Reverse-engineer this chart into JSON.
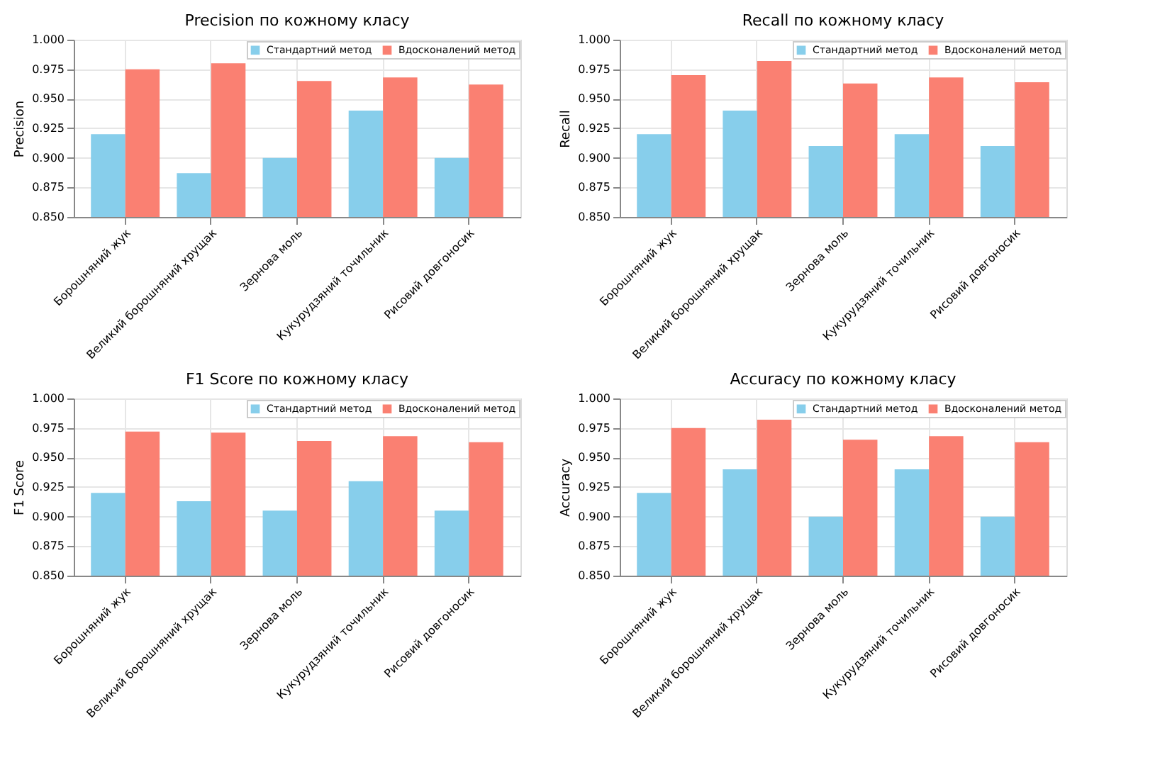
{
  "chart_data": [
    {
      "type": "bar",
      "title": "Precision по кожному класу",
      "ylabel": "Precision",
      "categories": [
        "Борошняний жук",
        "Великий борошняний хрущак",
        "Зернова моль",
        "Кукурудзяний точильник",
        "Рисовий довгоносик"
      ],
      "series": [
        {
          "name": "Стандартний метод",
          "color": "#87ceeb",
          "values": [
            0.92,
            0.887,
            0.9,
            0.94,
            0.9
          ]
        },
        {
          "name": "Вдосконалений метод",
          "color": "#fa8072",
          "values": [
            0.975,
            0.98,
            0.965,
            0.968,
            0.962
          ]
        }
      ],
      "ylim": [
        0.85,
        1.0
      ],
      "yticks": [
        {
          "value": 0.85,
          "label": "0.850"
        },
        {
          "value": 0.875,
          "label": "0.875"
        },
        {
          "value": 0.9,
          "label": "0.900"
        },
        {
          "value": 0.925,
          "label": "0.925"
        },
        {
          "value": 0.95,
          "label": "0.950"
        },
        {
          "value": 0.975,
          "label": "0.975"
        },
        {
          "value": 1.0,
          "label": "1.000"
        }
      ],
      "grid": true,
      "legend": "top right"
    },
    {
      "type": "bar",
      "title": "Recall по кожному класу",
      "ylabel": "Recall",
      "categories": [
        "Борошняний жук",
        "Великий борошняний хрущак",
        "Зернова моль",
        "Кукурудзяний точильник",
        "Рисовий довгоносик"
      ],
      "series": [
        {
          "name": "Стандартний метод",
          "color": "#87ceeb",
          "values": [
            0.92,
            0.94,
            0.91,
            0.92,
            0.91
          ]
        },
        {
          "name": "Вдосконалений метод",
          "color": "#fa8072",
          "values": [
            0.97,
            0.982,
            0.963,
            0.968,
            0.964
          ]
        }
      ],
      "ylim": [
        0.85,
        1.0
      ],
      "yticks": [
        {
          "value": 0.85,
          "label": "0.850"
        },
        {
          "value": 0.875,
          "label": "0.875"
        },
        {
          "value": 0.9,
          "label": "0.900"
        },
        {
          "value": 0.925,
          "label": "0.925"
        },
        {
          "value": 0.95,
          "label": "0.950"
        },
        {
          "value": 0.975,
          "label": "0.975"
        },
        {
          "value": 1.0,
          "label": "1.000"
        }
      ],
      "grid": true,
      "legend": "top right"
    },
    {
      "type": "bar",
      "title": "F1 Score по кожному класу",
      "ylabel": "F1 Score",
      "categories": [
        "Борошняний жук",
        "Великий борошняний хрущак",
        "Зернова моль",
        "Кукурудзяний точильник",
        "Рисовий довгоносик"
      ],
      "series": [
        {
          "name": "Стандартний метод",
          "color": "#87ceeb",
          "values": [
            0.92,
            0.913,
            0.905,
            0.93,
            0.905
          ]
        },
        {
          "name": "Вдосконалений метод",
          "color": "#fa8072",
          "values": [
            0.972,
            0.971,
            0.964,
            0.968,
            0.963
          ]
        }
      ],
      "ylim": [
        0.85,
        1.0
      ],
      "yticks": [
        {
          "value": 0.85,
          "label": "0.850"
        },
        {
          "value": 0.875,
          "label": "0.875"
        },
        {
          "value": 0.9,
          "label": "0.900"
        },
        {
          "value": 0.925,
          "label": "0.925"
        },
        {
          "value": 0.95,
          "label": "0.950"
        },
        {
          "value": 0.975,
          "label": "0.975"
        },
        {
          "value": 1.0,
          "label": "1.000"
        }
      ],
      "grid": true,
      "legend": "top right"
    },
    {
      "type": "bar",
      "title": "Accuracy по кожному класу",
      "ylabel": "Accuracy",
      "categories": [
        "Борошняний жук",
        "Великий борошняний хрущак",
        "Зернова моль",
        "Кукурудзяний точильник",
        "Рисовий довгоносик"
      ],
      "series": [
        {
          "name": "Стандартний метод",
          "color": "#87ceeb",
          "values": [
            0.92,
            0.94,
            0.9,
            0.94,
            0.9
          ]
        },
        {
          "name": "Вдосконалений метод",
          "color": "#fa8072",
          "values": [
            0.975,
            0.982,
            0.965,
            0.968,
            0.963
          ]
        }
      ],
      "ylim": [
        0.85,
        1.0
      ],
      "yticks": [
        {
          "value": 0.85,
          "label": "0.850"
        },
        {
          "value": 0.875,
          "label": "0.875"
        },
        {
          "value": 0.9,
          "label": "0.900"
        },
        {
          "value": 0.925,
          "label": "0.925"
        },
        {
          "value": 0.95,
          "label": "0.950"
        },
        {
          "value": 0.975,
          "label": "0.975"
        },
        {
          "value": 1.0,
          "label": "1.000"
        }
      ],
      "grid": true,
      "legend": "top right"
    }
  ]
}
